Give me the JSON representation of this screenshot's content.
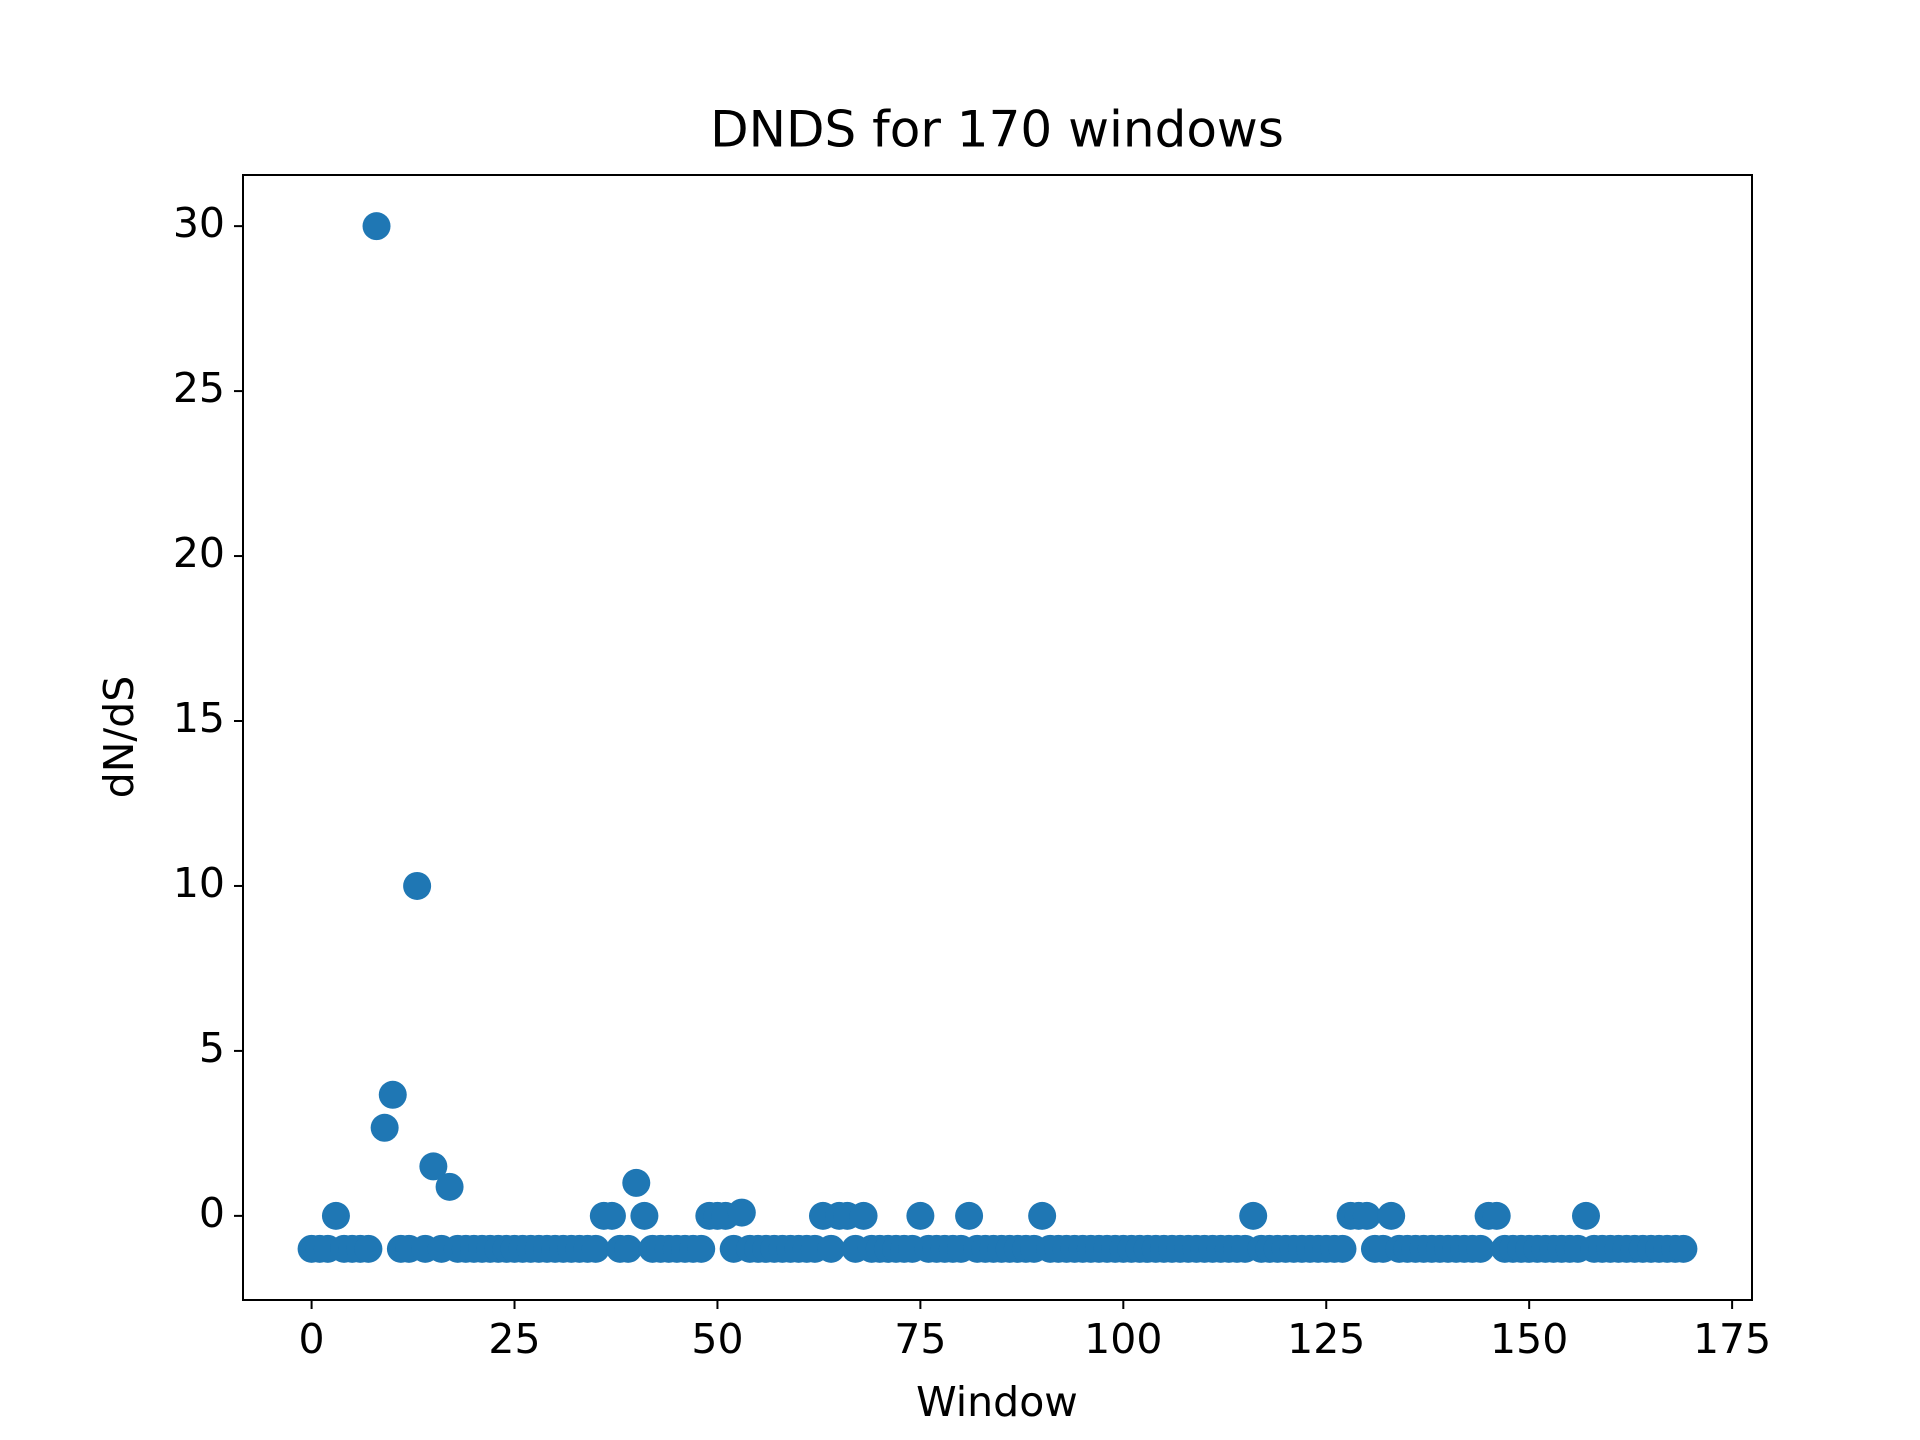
{
  "chart_data": {
    "type": "scatter",
    "title": "DNDS for 170 windows",
    "x_label": "Window",
    "y_label": "dN/dS",
    "color": "#1f77b4",
    "x": [
      0,
      1,
      2,
      3,
      4,
      5,
      6,
      7,
      8,
      9,
      10,
      11,
      12,
      13,
      14,
      15,
      16,
      17,
      18,
      19,
      20,
      21,
      22,
      23,
      24,
      25,
      26,
      27,
      28,
      29,
      30,
      31,
      32,
      33,
      34,
      35,
      36,
      37,
      38,
      39,
      40,
      41,
      42,
      43,
      44,
      45,
      46,
      47,
      48,
      49,
      50,
      51,
      52,
      53,
      54,
      55,
      56,
      57,
      58,
      59,
      60,
      61,
      62,
      63,
      64,
      65,
      66,
      67,
      68,
      69,
      70,
      71,
      72,
      73,
      74,
      75,
      76,
      77,
      78,
      79,
      80,
      81,
      82,
      83,
      84,
      85,
      86,
      87,
      88,
      89,
      90,
      91,
      92,
      93,
      94,
      95,
      96,
      97,
      98,
      99,
      100,
      101,
      102,
      103,
      104,
      105,
      106,
      107,
      108,
      109,
      110,
      111,
      112,
      113,
      114,
      115,
      116,
      117,
      118,
      119,
      120,
      121,
      122,
      123,
      124,
      125,
      126,
      127,
      128,
      129,
      130,
      131,
      132,
      133,
      134,
      135,
      136,
      137,
      138,
      139,
      140,
      141,
      142,
      143,
      144,
      145,
      146,
      147,
      148,
      149,
      150,
      151,
      152,
      153,
      154,
      155,
      156,
      157,
      158,
      159,
      160,
      161,
      162,
      163,
      164,
      165,
      166,
      167,
      168,
      169
    ],
    "values": [
      -1,
      -1,
      -1,
      0,
      -1,
      -1,
      -1,
      -1,
      30,
      2.67,
      3.67,
      -1,
      -1,
      10,
      -1,
      1.5,
      -1,
      0.88,
      -1,
      -1,
      -1,
      -1,
      -1,
      -1,
      -1,
      -1,
      -1,
      -1,
      -1,
      -1,
      -1,
      -1,
      -1,
      -1,
      -1,
      -1,
      0,
      0,
      -1,
      -1,
      1,
      0,
      -1,
      -1,
      -1,
      -1,
      -1,
      -1,
      -1,
      0,
      0,
      0,
      -1,
      0.1,
      -1,
      -1,
      -1,
      -1,
      -1,
      -1,
      -1,
      -1,
      -1,
      0,
      -1,
      0,
      0,
      -1,
      0,
      -1,
      -1,
      -1,
      -1,
      -1,
      -1,
      0,
      -1,
      -1,
      -1,
      -1,
      -1,
      0,
      -1,
      -1,
      -1,
      -1,
      -1,
      -1,
      -1,
      -1,
      0,
      -1,
      -1,
      -1,
      -1,
      -1,
      -1,
      -1,
      -1,
      -1,
      -1,
      -1,
      -1,
      -1,
      -1,
      -1,
      -1,
      -1,
      -1,
      -1,
      -1,
      -1,
      -1,
      -1,
      -1,
      -1,
      0,
      -1,
      -1,
      -1,
      -1,
      -1,
      -1,
      -1,
      -1,
      -1,
      -1,
      -1,
      0,
      0,
      0,
      -1,
      -1,
      0,
      -1,
      -1,
      -1,
      -1,
      -1,
      -1,
      -1,
      -1,
      -1,
      -1,
      -1,
      0,
      0,
      -1,
      -1,
      -1,
      -1,
      -1,
      -1,
      -1,
      -1,
      -1,
      -1,
      0,
      -1,
      -1,
      -1,
      -1,
      -1,
      -1,
      -1,
      -1,
      -1,
      -1,
      -1,
      -1
    ],
    "xlim": [
      -8.45,
      177.45
    ],
    "ylim": [
      -2.55,
      31.55
    ],
    "xticks": [
      0,
      25,
      50,
      75,
      100,
      125,
      150,
      175
    ],
    "yticks": [
      0,
      5,
      10,
      15,
      20,
      25,
      30
    ]
  }
}
